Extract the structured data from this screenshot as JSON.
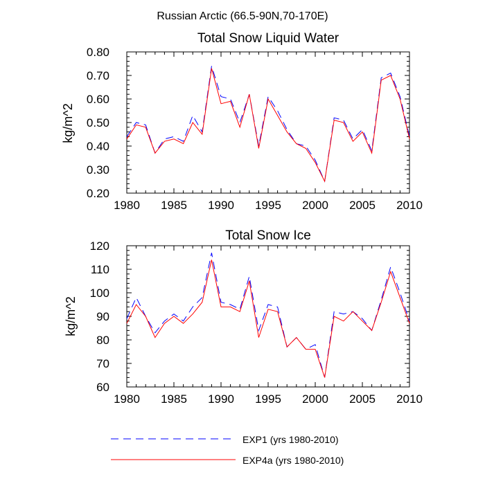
{
  "page_title": "Russian Arctic (66.5-90N,70-170E)",
  "legend": {
    "entries": [
      {
        "label": "EXP1 (yrs 1980-2010)",
        "color": "#0000ff",
        "dash": "dashed"
      },
      {
        "label": "EXP4a (yrs 1980-2010)",
        "color": "#ff0000",
        "dash": "solid"
      }
    ]
  },
  "chart_data": [
    {
      "type": "line",
      "title": "Total Snow Liquid Water",
      "xlabel": "",
      "ylabel": "kg/m^2",
      "xlim": [
        1980,
        2010
      ],
      "ylim": [
        0.2,
        0.8
      ],
      "xticks": [
        1980,
        1985,
        1990,
        1995,
        2000,
        2005,
        2010
      ],
      "yticks": [
        0.2,
        0.3,
        0.4,
        0.5,
        0.6,
        0.7,
        0.8
      ],
      "ytick_labels": [
        "0.20",
        "0.30",
        "0.40",
        "0.50",
        "0.60",
        "0.70",
        "0.80"
      ],
      "x": [
        1980,
        1981,
        1982,
        1983,
        1984,
        1985,
        1986,
        1987,
        1988,
        1989,
        1990,
        1991,
        1992,
        1993,
        1994,
        1995,
        1996,
        1997,
        1998,
        1999,
        2000,
        2001,
        2002,
        2003,
        2004,
        2005,
        2006,
        2007,
        2008,
        2009,
        2010
      ],
      "series": [
        {
          "name": "EXP1 (yrs 1980-2010)",
          "color": "#0000ff",
          "dash": "dashed",
          "values": [
            0.44,
            0.5,
            0.49,
            0.37,
            0.43,
            0.44,
            0.42,
            0.53,
            0.46,
            0.74,
            0.61,
            0.6,
            0.5,
            0.62,
            0.4,
            0.61,
            0.55,
            0.47,
            0.41,
            0.4,
            0.34,
            0.25,
            0.52,
            0.51,
            0.43,
            0.47,
            0.38,
            0.69,
            0.71,
            0.61,
            0.44
          ]
        },
        {
          "name": "EXP4a (yrs 1980-2010)",
          "color": "#ff0000",
          "dash": "solid",
          "values": [
            0.43,
            0.49,
            0.48,
            0.37,
            0.42,
            0.43,
            0.41,
            0.5,
            0.45,
            0.73,
            0.58,
            0.59,
            0.48,
            0.62,
            0.39,
            0.6,
            0.53,
            0.46,
            0.41,
            0.39,
            0.33,
            0.25,
            0.51,
            0.5,
            0.42,
            0.46,
            0.37,
            0.68,
            0.7,
            0.6,
            0.43
          ]
        }
      ]
    },
    {
      "type": "line",
      "title": "Total Snow Ice",
      "xlabel": "",
      "ylabel": "kg/m^2",
      "xlim": [
        1980,
        2010
      ],
      "ylim": [
        60,
        120
      ],
      "xticks": [
        1980,
        1985,
        1990,
        1995,
        2000,
        2005,
        2010
      ],
      "yticks": [
        60,
        70,
        80,
        90,
        100,
        110,
        120
      ],
      "ytick_labels": [
        "60",
        "70",
        "80",
        "90",
        "100",
        "110",
        "120"
      ],
      "x": [
        1980,
        1981,
        1982,
        1983,
        1984,
        1985,
        1986,
        1987,
        1988,
        1989,
        1990,
        1991,
        1992,
        1993,
        1994,
        1995,
        1996,
        1997,
        1998,
        1999,
        2000,
        2001,
        2002,
        2003,
        2004,
        2005,
        2006,
        2007,
        2008,
        2009,
        2010
      ],
      "series": [
        {
          "name": "EXP1 (yrs 1980-2010)",
          "color": "#0000ff",
          "dash": "dashed",
          "values": [
            89,
            98,
            90,
            83,
            88,
            91,
            88,
            94,
            98,
            117,
            96,
            95,
            93,
            107,
            84,
            95,
            94,
            77,
            81,
            76,
            78,
            64,
            92,
            91,
            92,
            89,
            84,
            97,
            111,
            100,
            88
          ]
        },
        {
          "name": "EXP4a (yrs 1980-2010)",
          "color": "#ff0000",
          "dash": "solid",
          "values": [
            87,
            95,
            90,
            81,
            87,
            90,
            87,
            91,
            96,
            114,
            94,
            94,
            92,
            105,
            81,
            93,
            92,
            77,
            81,
            76,
            76,
            64,
            90,
            88,
            92,
            88,
            84,
            96,
            109,
            98,
            87
          ]
        }
      ]
    }
  ]
}
